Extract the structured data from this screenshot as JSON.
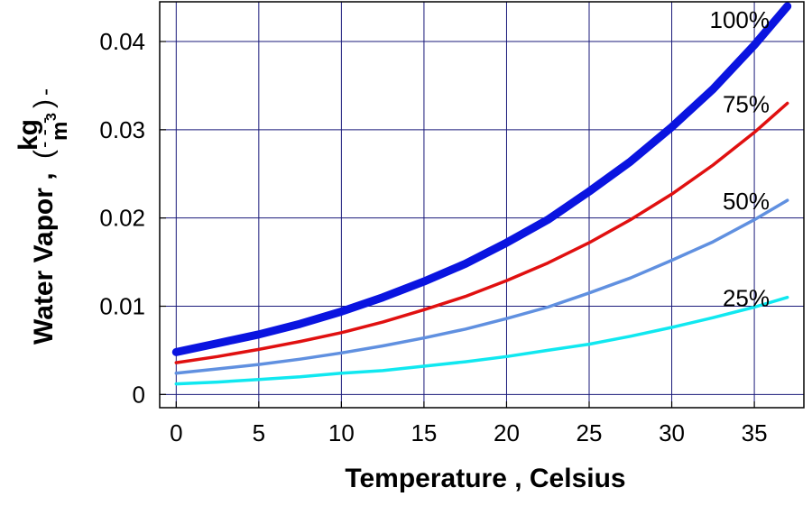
{
  "chart_data": {
    "type": "line",
    "xlabel": "Temperature ,  Celsius",
    "ylabel": {
      "main": "Water Vapor ,",
      "unit_open": "(",
      "unit_numerator": "kg",
      "unit_bar": "- - -",
      "unit_denominator": "m",
      "unit_exponent": "3",
      "unit_close": ")",
      "trailing": "-"
    },
    "xlim": [
      -1,
      38
    ],
    "ylim": [
      -0.0015,
      0.0445
    ],
    "x_ticks": [
      0,
      5,
      10,
      15,
      20,
      25,
      30,
      35
    ],
    "x_tick_labels": [
      "0",
      "5",
      "10",
      "15",
      "20",
      "25",
      "30",
      "35"
    ],
    "y_ticks": [
      0,
      0.01,
      0.02,
      0.03,
      0.04
    ],
    "y_tick_labels": [
      "0",
      "0.01",
      "0.02",
      "0.03",
      "0.04"
    ],
    "grid": true,
    "grid_color": "#1a1a7a",
    "x": [
      0,
      2.5,
      5,
      7.5,
      10,
      12.5,
      15,
      17.5,
      20,
      22.5,
      25,
      27.5,
      30,
      32.5,
      35,
      37
    ],
    "series": [
      {
        "name": "100%",
        "color": "#0a14e0",
        "values": [
          0.0048,
          0.0058,
          0.0068,
          0.008,
          0.0094,
          0.011,
          0.0128,
          0.0148,
          0.0172,
          0.0198,
          0.023,
          0.0264,
          0.0303,
          0.0346,
          0.0396,
          0.044
        ]
      },
      {
        "name": "75%",
        "color": "#e01010",
        "values": [
          0.0036,
          0.0043,
          0.0051,
          0.006,
          0.007,
          0.0082,
          0.0096,
          0.0111,
          0.0129,
          0.0149,
          0.0172,
          0.0198,
          0.0227,
          0.026,
          0.0297,
          0.033
        ]
      },
      {
        "name": "50%",
        "color": "#6090e0",
        "values": [
          0.0024,
          0.0029,
          0.0034,
          0.004,
          0.0047,
          0.0055,
          0.0064,
          0.0074,
          0.0086,
          0.0099,
          0.0115,
          0.0132,
          0.0152,
          0.0173,
          0.0198,
          0.022
        ]
      },
      {
        "name": "25%",
        "color": "#10e8f0",
        "values": [
          0.0012,
          0.0014,
          0.0017,
          0.002,
          0.0024,
          0.0027,
          0.0032,
          0.0037,
          0.0043,
          0.005,
          0.0057,
          0.0066,
          0.0076,
          0.0087,
          0.0099,
          0.011
        ]
      }
    ],
    "annotations": [
      "100%",
      "75%",
      "50%",
      "25%"
    ]
  }
}
